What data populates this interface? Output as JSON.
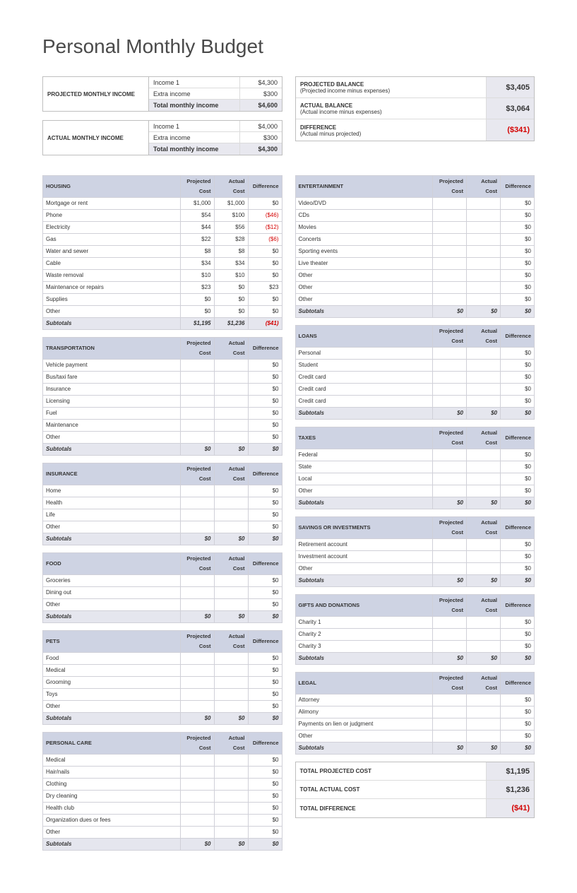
{
  "title": "Personal Monthly Budget",
  "income": {
    "projected": {
      "label": "PROJECTED MONTHLY INCOME",
      "rows": [
        {
          "label": "Income 1",
          "value": "$4,300"
        },
        {
          "label": "Extra income",
          "value": "$300"
        }
      ],
      "total_label": "Total monthly income",
      "total_value": "$4,600"
    },
    "actual": {
      "label": "ACTUAL MONTHLY INCOME",
      "rows": [
        {
          "label": "Income 1",
          "value": "$4,000"
        },
        {
          "label": "Extra income",
          "value": "$300"
        }
      ],
      "total_label": "Total monthly income",
      "total_value": "$4,300"
    }
  },
  "balances": [
    {
      "title": "PROJECTED BALANCE",
      "subtitle": "(Projected income minus expenses)",
      "value": "$3,405",
      "neg": false
    },
    {
      "title": "ACTUAL BALANCE",
      "subtitle": "(Actual income minus expenses)",
      "value": "$3,064",
      "neg": false
    },
    {
      "title": "DIFFERENCE",
      "subtitle": "(Actual minus projected)",
      "value": "($341)",
      "neg": true
    }
  ],
  "headers": {
    "pc": "Projected Cost",
    "ac": "Actual Cost",
    "df": "Difference"
  },
  "left_categories": [
    {
      "name": "HOUSING",
      "rows": [
        {
          "label": "Mortgage or rent",
          "pc": "$1,000",
          "ac": "$1,000",
          "df": "$0"
        },
        {
          "label": "Phone",
          "pc": "$54",
          "ac": "$100",
          "df": "($46)",
          "neg": true
        },
        {
          "label": "Electricity",
          "pc": "$44",
          "ac": "$56",
          "df": "($12)",
          "neg": true
        },
        {
          "label": "Gas",
          "pc": "$22",
          "ac": "$28",
          "df": "($6)",
          "neg": true
        },
        {
          "label": "Water and sewer",
          "pc": "$8",
          "ac": "$8",
          "df": "$0"
        },
        {
          "label": "Cable",
          "pc": "$34",
          "ac": "$34",
          "df": "$0"
        },
        {
          "label": "Waste removal",
          "pc": "$10",
          "ac": "$10",
          "df": "$0"
        },
        {
          "label": "Maintenance or repairs",
          "pc": "$23",
          "ac": "$0",
          "df": "$23"
        },
        {
          "label": "Supplies",
          "pc": "$0",
          "ac": "$0",
          "df": "$0"
        },
        {
          "label": "Other",
          "pc": "$0",
          "ac": "$0",
          "df": "$0"
        }
      ],
      "subtotal": {
        "pc": "$1,195",
        "ac": "$1,236",
        "df": "($41)",
        "neg": true
      }
    },
    {
      "name": "TRANSPORTATION",
      "rows": [
        {
          "label": "Vehicle payment",
          "pc": "",
          "ac": "",
          "df": "$0"
        },
        {
          "label": "Bus/taxi fare",
          "pc": "",
          "ac": "",
          "df": "$0"
        },
        {
          "label": "Insurance",
          "pc": "",
          "ac": "",
          "df": "$0"
        },
        {
          "label": "Licensing",
          "pc": "",
          "ac": "",
          "df": "$0"
        },
        {
          "label": "Fuel",
          "pc": "",
          "ac": "",
          "df": "$0"
        },
        {
          "label": "Maintenance",
          "pc": "",
          "ac": "",
          "df": "$0"
        },
        {
          "label": "Other",
          "pc": "",
          "ac": "",
          "df": "$0"
        }
      ],
      "subtotal": {
        "pc": "$0",
        "ac": "$0",
        "df": "$0"
      }
    },
    {
      "name": "INSURANCE",
      "rows": [
        {
          "label": "Home",
          "pc": "",
          "ac": "",
          "df": "$0"
        },
        {
          "label": "Health",
          "pc": "",
          "ac": "",
          "df": "$0"
        },
        {
          "label": "Life",
          "pc": "",
          "ac": "",
          "df": "$0"
        },
        {
          "label": "Other",
          "pc": "",
          "ac": "",
          "df": "$0"
        }
      ],
      "subtotal": {
        "pc": "$0",
        "ac": "$0",
        "df": "$0"
      }
    },
    {
      "name": "FOOD",
      "rows": [
        {
          "label": "Groceries",
          "pc": "",
          "ac": "",
          "df": "$0"
        },
        {
          "label": "Dining out",
          "pc": "",
          "ac": "",
          "df": "$0"
        },
        {
          "label": "Other",
          "pc": "",
          "ac": "",
          "df": "$0"
        }
      ],
      "subtotal": {
        "pc": "$0",
        "ac": "$0",
        "df": "$0"
      }
    },
    {
      "name": "PETS",
      "rows": [
        {
          "label": "Food",
          "pc": "",
          "ac": "",
          "df": "$0"
        },
        {
          "label": "Medical",
          "pc": "",
          "ac": "",
          "df": "$0"
        },
        {
          "label": "Grooming",
          "pc": "",
          "ac": "",
          "df": "$0"
        },
        {
          "label": "Toys",
          "pc": "",
          "ac": "",
          "df": "$0"
        },
        {
          "label": "Other",
          "pc": "",
          "ac": "",
          "df": "$0"
        }
      ],
      "subtotal": {
        "pc": "$0",
        "ac": "$0",
        "df": "$0"
      }
    },
    {
      "name": "PERSONAL CARE",
      "rows": [
        {
          "label": "Medical",
          "pc": "",
          "ac": "",
          "df": "$0"
        },
        {
          "label": "Hair/nails",
          "pc": "",
          "ac": "",
          "df": "$0"
        },
        {
          "label": "Clothing",
          "pc": "",
          "ac": "",
          "df": "$0"
        },
        {
          "label": "Dry cleaning",
          "pc": "",
          "ac": "",
          "df": "$0"
        },
        {
          "label": "Health club",
          "pc": "",
          "ac": "",
          "df": "$0"
        },
        {
          "label": "Organization dues or fees",
          "pc": "",
          "ac": "",
          "df": "$0"
        },
        {
          "label": "Other",
          "pc": "",
          "ac": "",
          "df": "$0"
        }
      ],
      "subtotal": {
        "pc": "$0",
        "ac": "$0",
        "df": "$0"
      }
    }
  ],
  "right_categories": [
    {
      "name": "ENTERTAINMENT",
      "rows": [
        {
          "label": "Video/DVD",
          "pc": "",
          "ac": "",
          "df": "$0"
        },
        {
          "label": "CDs",
          "pc": "",
          "ac": "",
          "df": "$0"
        },
        {
          "label": "Movies",
          "pc": "",
          "ac": "",
          "df": "$0"
        },
        {
          "label": "Concerts",
          "pc": "",
          "ac": "",
          "df": "$0"
        },
        {
          "label": "Sporting events",
          "pc": "",
          "ac": "",
          "df": "$0"
        },
        {
          "label": "Live theater",
          "pc": "",
          "ac": "",
          "df": "$0"
        },
        {
          "label": "Other",
          "pc": "",
          "ac": "",
          "df": "$0"
        },
        {
          "label": "Other",
          "pc": "",
          "ac": "",
          "df": "$0"
        },
        {
          "label": "Other",
          "pc": "",
          "ac": "",
          "df": "$0"
        }
      ],
      "subtotal": {
        "pc": "$0",
        "ac": "$0",
        "df": "$0"
      }
    },
    {
      "name": "LOANS",
      "rows": [
        {
          "label": "Personal",
          "pc": "",
          "ac": "",
          "df": "$0"
        },
        {
          "label": "Student",
          "pc": "",
          "ac": "",
          "df": "$0"
        },
        {
          "label": "Credit card",
          "pc": "",
          "ac": "",
          "df": "$0"
        },
        {
          "label": "Credit card",
          "pc": "",
          "ac": "",
          "df": "$0"
        },
        {
          "label": "Credit card",
          "pc": "",
          "ac": "",
          "df": "$0"
        }
      ],
      "subtotal": {
        "pc": "$0",
        "ac": "$0",
        "df": "$0"
      }
    },
    {
      "name": "TAXES",
      "rows": [
        {
          "label": "Federal",
          "pc": "",
          "ac": "",
          "df": "$0"
        },
        {
          "label": "State",
          "pc": "",
          "ac": "",
          "df": "$0"
        },
        {
          "label": "Local",
          "pc": "",
          "ac": "",
          "df": "$0"
        },
        {
          "label": "Other",
          "pc": "",
          "ac": "",
          "df": "$0"
        }
      ],
      "subtotal": {
        "pc": "$0",
        "ac": "$0",
        "df": "$0"
      }
    },
    {
      "name": "SAVINGS OR INVESTMENTS",
      "rows": [
        {
          "label": "Retirement account",
          "pc": "",
          "ac": "",
          "df": "$0"
        },
        {
          "label": "Investment account",
          "pc": "",
          "ac": "",
          "df": "$0"
        },
        {
          "label": "Other",
          "pc": "",
          "ac": "",
          "df": "$0"
        }
      ],
      "subtotal": {
        "pc": "$0",
        "ac": "$0",
        "df": "$0"
      }
    },
    {
      "name": "GIFTS AND DONATIONS",
      "rows": [
        {
          "label": "Charity 1",
          "pc": "",
          "ac": "",
          "df": "$0"
        },
        {
          "label": "Charity 2",
          "pc": "",
          "ac": "",
          "df": "$0"
        },
        {
          "label": "Charity 3",
          "pc": "",
          "ac": "",
          "df": "$0"
        }
      ],
      "subtotal": {
        "pc": "$0",
        "ac": "$0",
        "df": "$0"
      }
    },
    {
      "name": "LEGAL",
      "rows": [
        {
          "label": "Attorney",
          "pc": "",
          "ac": "",
          "df": "$0"
        },
        {
          "label": "Alimony",
          "pc": "",
          "ac": "",
          "df": "$0"
        },
        {
          "label": "Payments on lien or judgment",
          "pc": "",
          "ac": "",
          "df": "$0"
        },
        {
          "label": "Other",
          "pc": "",
          "ac": "",
          "df": "$0"
        }
      ],
      "subtotal": {
        "pc": "$0",
        "ac": "$0",
        "df": "$0"
      }
    }
  ],
  "totals": [
    {
      "label": "TOTAL PROJECTED COST",
      "value": "$1,195",
      "neg": false
    },
    {
      "label": "TOTAL ACTUAL COST",
      "value": "$1,236",
      "neg": false
    },
    {
      "label": "TOTAL DIFFERENCE",
      "value": "($41)",
      "neg": true
    }
  ],
  "subtotal_label": "Subtotals",
  "colors": {
    "header_bg": "#ced3e3",
    "subtotal_bg": "#e5e6ee",
    "border": "#d0d0d8",
    "negative": "#d40000"
  }
}
